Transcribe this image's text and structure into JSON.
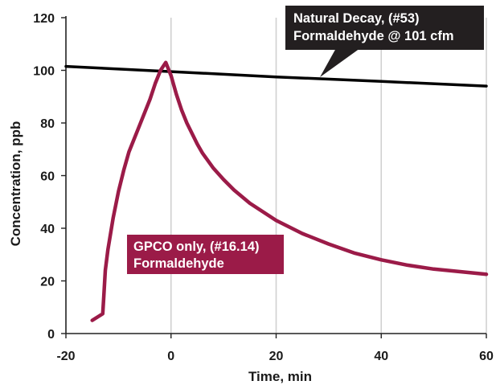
{
  "chart_data": {
    "type": "line",
    "title": "",
    "xlabel": "Time, min",
    "ylabel": "Concentration, ppb",
    "xlim": [
      -20,
      60
    ],
    "ylim": [
      0,
      120
    ],
    "xticks": [
      -20,
      0,
      20,
      40,
      60
    ],
    "yticks": [
      0,
      20,
      40,
      60,
      80,
      100,
      120
    ],
    "grid": true,
    "legend": "none",
    "series": [
      {
        "color": "#000000",
        "x": [
          -20,
          0,
          20,
          40,
          60
        ],
        "y": [
          101.5,
          99.5,
          97.5,
          95.8,
          94.0
        ]
      },
      {
        "color": "#9b1b48",
        "x": [
          -15,
          -13,
          -12.8,
          -12.5,
          -12,
          -11,
          -10,
          -9,
          -8,
          -6,
          -4,
          -3,
          -2,
          -1,
          0,
          1,
          2,
          3,
          4,
          5,
          6,
          8,
          10,
          12,
          15,
          20,
          25,
          30,
          35,
          40,
          45,
          50,
          55,
          60
        ],
        "y": [
          5,
          7.5,
          14,
          24,
          32,
          44,
          54,
          62,
          69,
          79,
          89,
          95,
          100,
          103,
          98,
          91,
          85,
          80,
          76,
          72,
          68.5,
          63,
          58.5,
          54.5,
          49.5,
          43,
          38,
          34,
          30.5,
          28,
          26,
          24.5,
          23.5,
          22.5
        ]
      }
    ],
    "annotations": [
      {
        "lines": [
          "Natural Decay, (#53)",
          "Formaldehyde @ 101 cfm"
        ],
        "color": "#231f20"
      },
      {
        "lines": [
          "GPCO only, (#16.14)",
          "Formaldehyde"
        ],
        "color": "#9b1b48"
      }
    ]
  }
}
